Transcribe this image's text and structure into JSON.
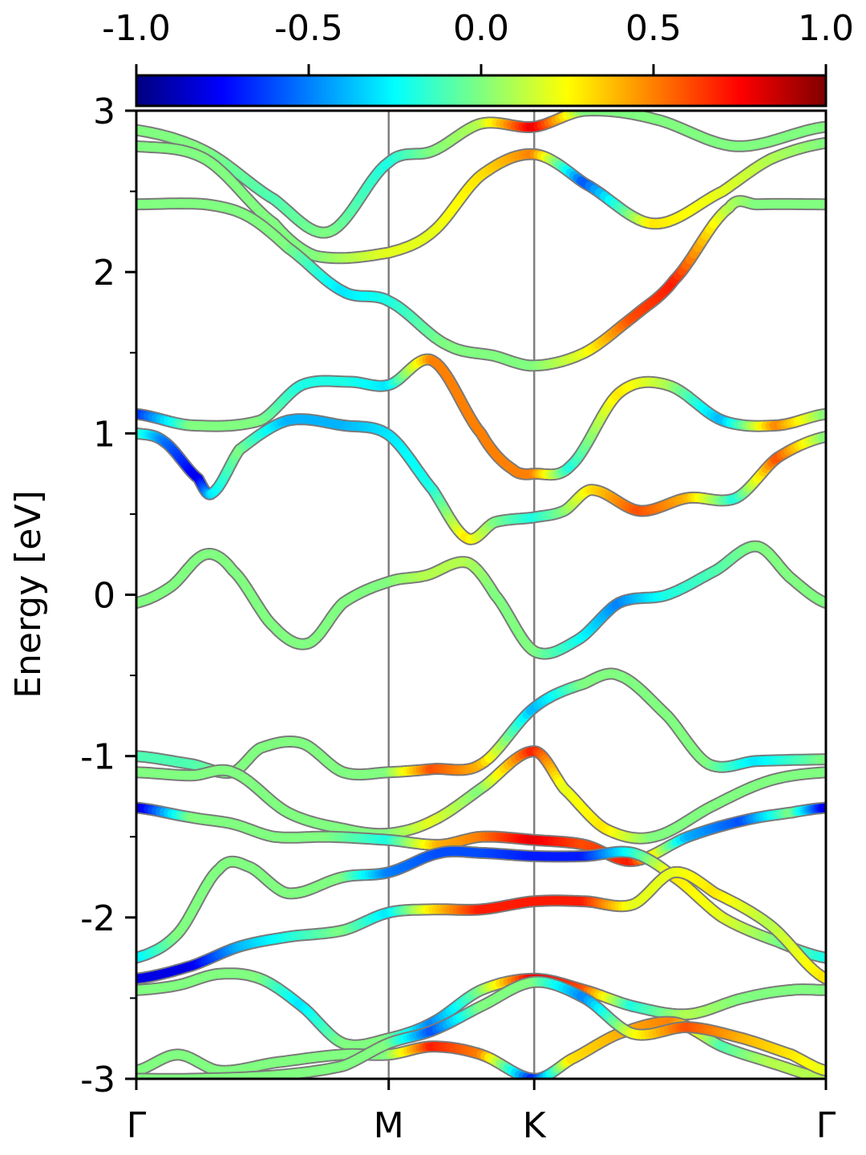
{
  "chart_data": {
    "type": "line",
    "title": "",
    "xlabel": "",
    "ylabel": "Energy [eV]",
    "ylim": [
      -3,
      3
    ],
    "y_ticks": [
      "-3",
      "-2",
      "-1",
      "0",
      "1",
      "2",
      "3"
    ],
    "x_range": [
      0,
      1
    ],
    "kpoints": [
      {
        "label": "Γ",
        "x": 0.0
      },
      {
        "label": "M",
        "x": 0.366
      },
      {
        "label": "K",
        "x": 0.577
      },
      {
        "label": "Γ",
        "x": 1.0
      }
    ],
    "colorbar": {
      "colormap": "jet",
      "range": [
        -1.0,
        1.0
      ],
      "tick_labels": [
        "-1.0",
        "-0.5",
        "0.0",
        "0.5",
        "1.0"
      ],
      "placement": "top"
    },
    "grid": false,
    "legend": "none",
    "series": [
      {
        "points": [
          [
            0,
            2.88,
            0
          ],
          [
            0.1,
            2.75,
            0
          ],
          [
            0.2,
            2.45,
            -0.1
          ],
          [
            0.28,
            2.25,
            0
          ],
          [
            0.366,
            2.68,
            -0.2
          ],
          [
            0.43,
            2.75,
            0
          ],
          [
            0.5,
            2.92,
            0.1
          ],
          [
            0.577,
            2.9,
            0.8
          ],
          [
            0.65,
            3.0,
            0
          ],
          [
            0.75,
            2.95,
            0
          ],
          [
            0.87,
            2.78,
            0
          ],
          [
            1.0,
            2.9,
            0
          ]
        ]
      },
      {
        "points": [
          [
            0,
            2.78,
            0
          ],
          [
            0.1,
            2.7,
            0
          ],
          [
            0.2,
            2.3,
            0
          ],
          [
            0.26,
            2.1,
            0
          ],
          [
            0.366,
            2.12,
            0.2
          ],
          [
            0.43,
            2.25,
            0.2
          ],
          [
            0.5,
            2.6,
            0.3
          ],
          [
            0.577,
            2.73,
            0.5
          ],
          [
            0.65,
            2.55,
            -0.6
          ],
          [
            0.75,
            2.3,
            0.3
          ],
          [
            0.85,
            2.5,
            0.2
          ],
          [
            0.92,
            2.7,
            0.1
          ],
          [
            1.0,
            2.8,
            0
          ]
        ]
      },
      {
        "points": [
          [
            0,
            2.42,
            0
          ],
          [
            0.1,
            2.42,
            0
          ],
          [
            0.16,
            2.35,
            0
          ],
          [
            0.22,
            2.15,
            0
          ],
          [
            0.3,
            1.88,
            -0.3
          ],
          [
            0.366,
            1.82,
            -0.2
          ],
          [
            0.45,
            1.55,
            0
          ],
          [
            0.52,
            1.48,
            0
          ],
          [
            0.577,
            1.42,
            0
          ],
          [
            0.65,
            1.5,
            0.2
          ],
          [
            0.72,
            1.72,
            0.6
          ],
          [
            0.78,
            1.95,
            0.7
          ],
          [
            0.86,
            2.4,
            0.1
          ],
          [
            0.9,
            2.42,
            0
          ],
          [
            1.0,
            2.42,
            0
          ]
        ]
      },
      {
        "points": [
          [
            0,
            1.12,
            -0.7
          ],
          [
            0.08,
            1.05,
            0
          ],
          [
            0.18,
            1.08,
            0
          ],
          [
            0.24,
            1.3,
            -0.2
          ],
          [
            0.31,
            1.32,
            -0.2
          ],
          [
            0.366,
            1.3,
            -0.3
          ],
          [
            0.43,
            1.45,
            0.5
          ],
          [
            0.5,
            1.0,
            0.5
          ],
          [
            0.545,
            0.78,
            0.5
          ],
          [
            0.577,
            0.75,
            0.5
          ],
          [
            0.63,
            0.8,
            -0.2
          ],
          [
            0.7,
            1.25,
            0.3
          ],
          [
            0.77,
            1.3,
            0.1
          ],
          [
            0.85,
            1.08,
            -0.4
          ],
          [
            0.93,
            1.05,
            0.5
          ],
          [
            1.0,
            1.12,
            0
          ]
        ]
      },
      {
        "points": [
          [
            0,
            1.0,
            -0.1
          ],
          [
            0.04,
            0.95,
            -0.5
          ],
          [
            0.09,
            0.72,
            -0.8
          ],
          [
            0.11,
            0.63,
            -0.3
          ],
          [
            0.15,
            0.9,
            0
          ],
          [
            0.22,
            1.08,
            -0.4
          ],
          [
            0.3,
            1.05,
            -0.4
          ],
          [
            0.366,
            0.99,
            -0.3
          ],
          [
            0.43,
            0.65,
            -0.2
          ],
          [
            0.48,
            0.35,
            0.3
          ],
          [
            0.52,
            0.45,
            0
          ],
          [
            0.577,
            0.48,
            -0.2
          ],
          [
            0.62,
            0.52,
            0
          ],
          [
            0.66,
            0.65,
            0.3
          ],
          [
            0.73,
            0.52,
            0.6
          ],
          [
            0.8,
            0.6,
            0.4
          ],
          [
            0.87,
            0.6,
            -0.2
          ],
          [
            0.93,
            0.85,
            0.6
          ],
          [
            1.0,
            0.98,
            0
          ]
        ]
      },
      {
        "points": [
          [
            0,
            -0.05,
            0
          ],
          [
            0.05,
            0.05,
            0
          ],
          [
            0.1,
            0.25,
            0
          ],
          [
            0.14,
            0.15,
            0
          ],
          [
            0.2,
            -0.2,
            0
          ],
          [
            0.25,
            -0.3,
            0
          ],
          [
            0.3,
            -0.05,
            0
          ],
          [
            0.366,
            0.08,
            0
          ],
          [
            0.42,
            0.12,
            0.1
          ],
          [
            0.48,
            0.2,
            0.1
          ],
          [
            0.52,
            0.0,
            0
          ],
          [
            0.577,
            -0.35,
            0
          ],
          [
            0.64,
            -0.28,
            -0.2
          ],
          [
            0.7,
            -0.05,
            -0.5
          ],
          [
            0.77,
            0.0,
            -0.2
          ],
          [
            0.84,
            0.15,
            -0.1
          ],
          [
            0.9,
            0.3,
            0
          ],
          [
            0.95,
            0.1,
            0
          ],
          [
            1.0,
            -0.05,
            0
          ]
        ]
      },
      {
        "points": [
          [
            0,
            -1.0,
            -0.1
          ],
          [
            0.08,
            -1.05,
            -0.1
          ],
          [
            0.14,
            -1.1,
            0
          ],
          [
            0.18,
            -0.95,
            0
          ],
          [
            0.24,
            -0.92,
            0
          ],
          [
            0.3,
            -1.1,
            0
          ],
          [
            0.366,
            -1.1,
            0
          ],
          [
            0.43,
            -1.08,
            0.6
          ],
          [
            0.5,
            -1.05,
            0.4
          ],
          [
            0.577,
            -0.7,
            -0.4
          ],
          [
            0.65,
            -0.55,
            0
          ],
          [
            0.7,
            -0.5,
            0
          ],
          [
            0.77,
            -0.75,
            0
          ],
          [
            0.83,
            -1.05,
            0
          ],
          [
            0.9,
            -1.03,
            -0.3
          ],
          [
            1.0,
            -1.02,
            0
          ]
        ]
      },
      {
        "points": [
          [
            0,
            -1.1,
            0
          ],
          [
            0.08,
            -1.12,
            0
          ],
          [
            0.14,
            -1.1,
            0
          ],
          [
            0.22,
            -1.35,
            0
          ],
          [
            0.3,
            -1.45,
            0
          ],
          [
            0.366,
            -1.48,
            0
          ],
          [
            0.43,
            -1.4,
            0.2
          ],
          [
            0.5,
            -1.2,
            0
          ],
          [
            0.577,
            -0.97,
            0.7
          ],
          [
            0.62,
            -1.2,
            0.2
          ],
          [
            0.68,
            -1.45,
            0.3
          ],
          [
            0.75,
            -1.5,
            0
          ],
          [
            0.84,
            -1.3,
            0
          ],
          [
            0.92,
            -1.15,
            0
          ],
          [
            1.0,
            -1.1,
            0
          ]
        ]
      },
      {
        "points": [
          [
            0,
            -1.32,
            -0.9
          ],
          [
            0.08,
            -1.38,
            0
          ],
          [
            0.14,
            -1.42,
            0
          ],
          [
            0.2,
            -1.5,
            0
          ],
          [
            0.28,
            -1.5,
            0
          ],
          [
            0.366,
            -1.52,
            -0.2
          ],
          [
            0.44,
            -1.55,
            0.4
          ],
          [
            0.5,
            -1.5,
            0.5
          ],
          [
            0.577,
            -1.52,
            0.8
          ],
          [
            0.65,
            -1.55,
            0.6
          ],
          [
            0.72,
            -1.65,
            0.7
          ],
          [
            0.8,
            -1.5,
            -0.4
          ],
          [
            0.88,
            -1.4,
            -0.6
          ],
          [
            0.95,
            -1.35,
            0
          ],
          [
            1.0,
            -1.32,
            -0.8
          ]
        ]
      },
      {
        "points": [
          [
            0,
            -2.25,
            -0.3
          ],
          [
            0.06,
            -2.1,
            0
          ],
          [
            0.12,
            -1.7,
            0
          ],
          [
            0.16,
            -1.68,
            0
          ],
          [
            0.22,
            -1.85,
            0
          ],
          [
            0.3,
            -1.75,
            0
          ],
          [
            0.366,
            -1.72,
            -0.5
          ],
          [
            0.44,
            -1.6,
            -0.6
          ],
          [
            0.5,
            -1.6,
            -0.6
          ],
          [
            0.577,
            -1.62,
            -0.7
          ],
          [
            0.65,
            -1.62,
            -0.7
          ],
          [
            0.72,
            -1.6,
            -0.2
          ],
          [
            0.78,
            -1.75,
            0.3
          ],
          [
            0.85,
            -2.0,
            0.2
          ],
          [
            0.93,
            -2.15,
            0
          ],
          [
            1.0,
            -2.25,
            -0.2
          ]
        ]
      },
      {
        "points": [
          [
            0,
            -2.38,
            -0.8
          ],
          [
            0.08,
            -2.3,
            -0.8
          ],
          [
            0.15,
            -2.18,
            -0.4
          ],
          [
            0.22,
            -2.12,
            -0.2
          ],
          [
            0.3,
            -2.08,
            0
          ],
          [
            0.366,
            -1.97,
            -0.3
          ],
          [
            0.43,
            -1.95,
            0.3
          ],
          [
            0.5,
            -1.95,
            0.7
          ],
          [
            0.577,
            -1.9,
            0.7
          ],
          [
            0.65,
            -1.9,
            0.7
          ],
          [
            0.72,
            -1.92,
            0.2
          ],
          [
            0.78,
            -1.72,
            0.2
          ],
          [
            0.84,
            -1.85,
            0.3
          ],
          [
            0.92,
            -2.05,
            0.1
          ],
          [
            1.0,
            -2.38,
            0.3
          ]
        ]
      },
      {
        "points": [
          [
            0,
            -2.45,
            0
          ],
          [
            0.06,
            -2.42,
            0
          ],
          [
            0.12,
            -2.35,
            0
          ],
          [
            0.18,
            -2.38,
            0
          ],
          [
            0.24,
            -2.55,
            -0.3
          ],
          [
            0.3,
            -2.78,
            0
          ],
          [
            0.366,
            -2.75,
            0
          ],
          [
            0.43,
            -2.65,
            -0.5
          ],
          [
            0.5,
            -2.45,
            0
          ],
          [
            0.577,
            -2.38,
            0.8
          ],
          [
            0.65,
            -2.45,
            0.6
          ],
          [
            0.72,
            -2.55,
            -0.2
          ],
          [
            0.8,
            -2.6,
            0.1
          ],
          [
            0.88,
            -2.5,
            0
          ],
          [
            0.95,
            -2.45,
            0
          ],
          [
            1.0,
            -2.45,
            0
          ]
        ]
      },
      {
        "points": [
          [
            0,
            -2.95,
            0
          ],
          [
            0.06,
            -2.85,
            0
          ],
          [
            0.12,
            -2.95,
            0
          ],
          [
            0.2,
            -2.9,
            0
          ],
          [
            0.3,
            -2.85,
            0
          ],
          [
            0.366,
            -2.85,
            0
          ],
          [
            0.43,
            -2.8,
            0.7
          ],
          [
            0.5,
            -2.85,
            0.5
          ],
          [
            0.577,
            -3.0,
            -0.7
          ],
          [
            0.63,
            -2.88,
            0.3
          ],
          [
            0.7,
            -2.72,
            0.4
          ],
          [
            0.78,
            -2.65,
            0.5
          ],
          [
            0.85,
            -2.8,
            -0.1
          ],
          [
            0.92,
            -2.9,
            0.1
          ],
          [
            1.0,
            -3.0,
            0.1
          ]
        ]
      },
      {
        "points": [
          [
            0,
            -3.0,
            0
          ],
          [
            0.08,
            -3.0,
            0
          ],
          [
            0.2,
            -2.98,
            0
          ],
          [
            0.3,
            -2.92,
            0
          ],
          [
            0.366,
            -2.78,
            0
          ],
          [
            0.43,
            -2.7,
            -0.6
          ],
          [
            0.5,
            -2.55,
            0
          ],
          [
            0.577,
            -2.4,
            0
          ],
          [
            0.65,
            -2.5,
            -0.5
          ],
          [
            0.72,
            -2.72,
            0.2
          ],
          [
            0.8,
            -2.68,
            0.6
          ],
          [
            0.88,
            -2.75,
            0.4
          ],
          [
            0.95,
            -2.85,
            0.3
          ],
          [
            1.0,
            -2.95,
            0.2
          ]
        ]
      }
    ]
  }
}
